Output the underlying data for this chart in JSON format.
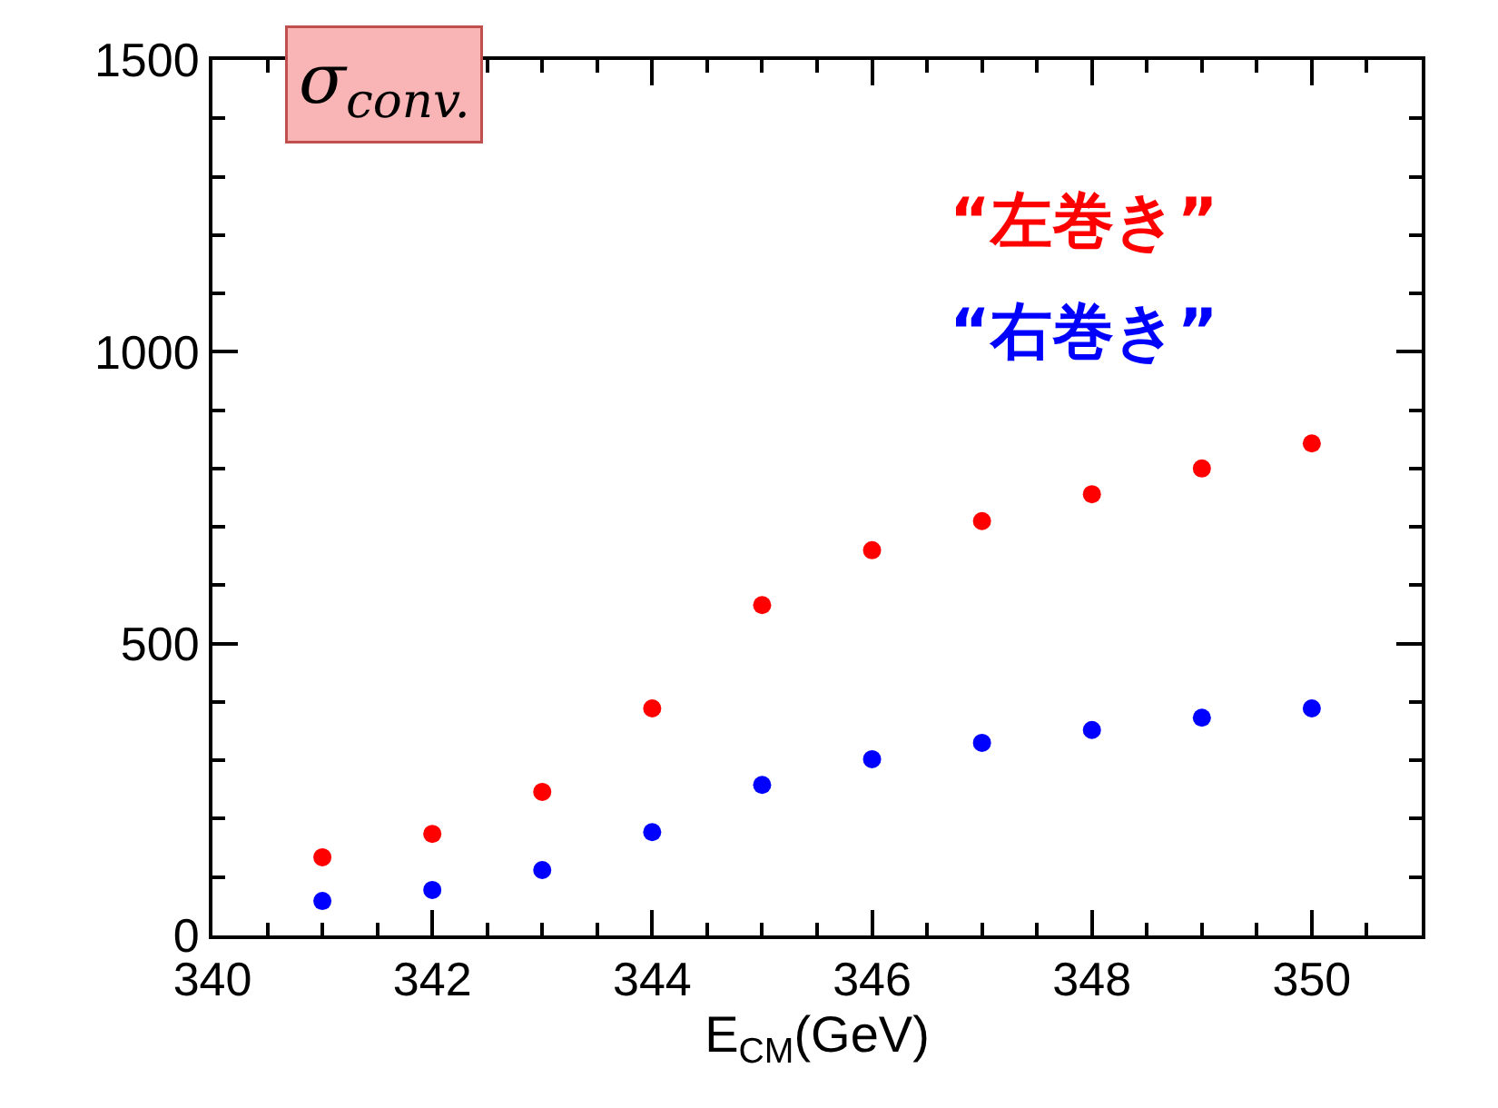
{
  "chart_data": {
    "type": "scatter",
    "title": "σ$_{conv.}$",
    "xlabel": "E$_{CM}$(GeV)",
    "x": [
      341,
      342,
      343,
      344,
      345,
      346,
      347,
      348,
      349,
      350
    ],
    "series": [
      {
        "name": "“左巻き”",
        "color": "#ff0000",
        "values": [
          134,
          174,
          246,
          389,
          566,
          660,
          710,
          756,
          800,
          843
        ]
      },
      {
        "name": "“右巻き”",
        "color": "#0000ff",
        "values": [
          59,
          78,
          112,
          177,
          258,
          302,
          330,
          352,
          373,
          389
        ]
      }
    ],
    "xlim": [
      340,
      351
    ],
    "xticks": [
      340,
      342,
      344,
      346,
      348,
      350
    ],
    "ylim": [
      0,
      1500
    ],
    "yticks": [
      0,
      500,
      1000,
      1500
    ],
    "marker": "circle",
    "legend": false
  }
}
